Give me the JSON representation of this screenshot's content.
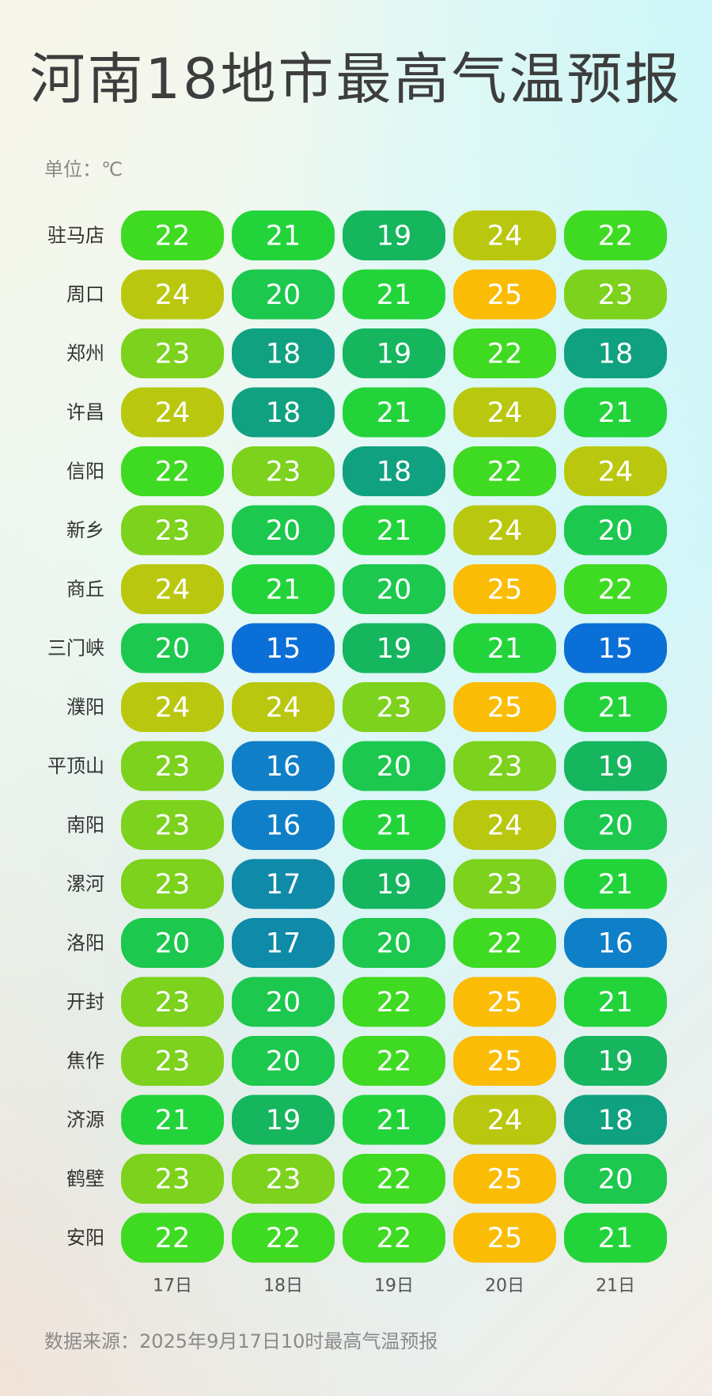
{
  "title": "河南18地市最高气温预报",
  "unit": "单位：℃",
  "source": "数据来源：2025年9月17日10时最高气温预报",
  "chart_data": {
    "type": "heatmap",
    "title": "河南18地市最高气温预报",
    "x": [
      "17日",
      "18日",
      "19日",
      "20日",
      "21日"
    ],
    "y": [
      "驻马店",
      "周口",
      "郑州",
      "许昌",
      "信阳",
      "新乡",
      "商丘",
      "三门峡",
      "濮阳",
      "平顶山",
      "南阳",
      "漯河",
      "洛阳",
      "开封",
      "焦作",
      "济源",
      "鹤壁",
      "安阳"
    ],
    "values": [
      [
        22,
        21,
        19,
        24,
        22
      ],
      [
        24,
        20,
        21,
        25,
        23
      ],
      [
        23,
        18,
        19,
        22,
        18
      ],
      [
        24,
        18,
        21,
        24,
        21
      ],
      [
        22,
        23,
        18,
        22,
        24
      ],
      [
        23,
        20,
        21,
        24,
        20
      ],
      [
        24,
        21,
        20,
        25,
        22
      ],
      [
        20,
        15,
        19,
        21,
        15
      ],
      [
        24,
        24,
        23,
        25,
        21
      ],
      [
        23,
        16,
        20,
        23,
        19
      ],
      [
        23,
        16,
        21,
        24,
        20
      ],
      [
        23,
        17,
        19,
        23,
        21
      ],
      [
        20,
        17,
        20,
        22,
        16
      ],
      [
        23,
        20,
        22,
        25,
        21
      ],
      [
        23,
        20,
        22,
        25,
        19
      ],
      [
        21,
        19,
        21,
        24,
        18
      ],
      [
        23,
        23,
        22,
        25,
        20
      ],
      [
        22,
        22,
        22,
        25,
        21
      ]
    ],
    "color_scale": {
      "15": "#0b6fd8",
      "16": "#0f7fc8",
      "17": "#0f8aa8",
      "18": "#10a180",
      "19": "#16b65e",
      "20": "#1cc84e",
      "21": "#22d43a",
      "22": "#3fda22",
      "23": "#7cd21c",
      "24": "#b9c80f",
      "25": "#fbbc05"
    }
  }
}
